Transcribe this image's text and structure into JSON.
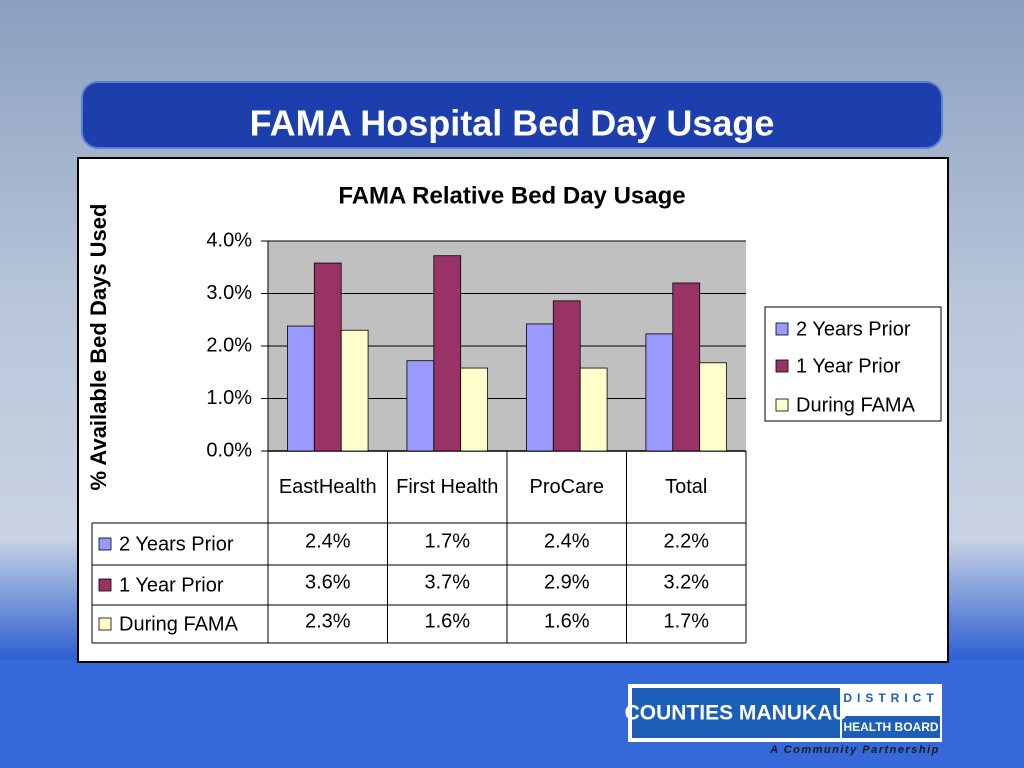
{
  "slide": {
    "title": "FAMA Hospital Bed Day Usage"
  },
  "logo": {
    "name": "COUNTIES MANUKAU",
    "district": "DISTRICT",
    "board": "HEALTH BOARD",
    "tagline": "A Community Partnership"
  },
  "chart_data": {
    "type": "bar",
    "title": "FAMA Relative Bed Day Usage",
    "y_label": "% Available Bed Days Used",
    "categories": [
      "EastHealth",
      "First Health",
      "ProCare",
      "Total"
    ],
    "series": [
      {
        "name": "2 Years Prior",
        "color": "#9999ff",
        "values": [
          2.38,
          1.72,
          2.42,
          2.23
        ],
        "value_labels": [
          "2.4%",
          "1.7%",
          "2.4%",
          "2.2%"
        ]
      },
      {
        "name": "1 Year Prior",
        "color": "#993366",
        "values": [
          3.58,
          3.72,
          2.86,
          3.2
        ],
        "value_labels": [
          "3.6%",
          "3.7%",
          "2.9%",
          "3.2%"
        ]
      },
      {
        "name": "During FAMA",
        "color": "#ffffcc",
        "values": [
          2.3,
          1.58,
          1.58,
          1.68
        ],
        "value_labels": [
          "2.3%",
          "1.6%",
          "1.6%",
          "1.7%"
        ]
      }
    ],
    "ylim": [
      0,
      4
    ],
    "yticks": [
      {
        "value": 0,
        "label": "0.0%"
      },
      {
        "value": 1,
        "label": "1.0%"
      },
      {
        "value": 2,
        "label": "2.0%"
      },
      {
        "value": 3,
        "label": "3.0%"
      },
      {
        "value": 4,
        "label": "4.0%"
      }
    ],
    "grid": true,
    "legend": "right",
    "plot_background": "#c0c0c0"
  }
}
